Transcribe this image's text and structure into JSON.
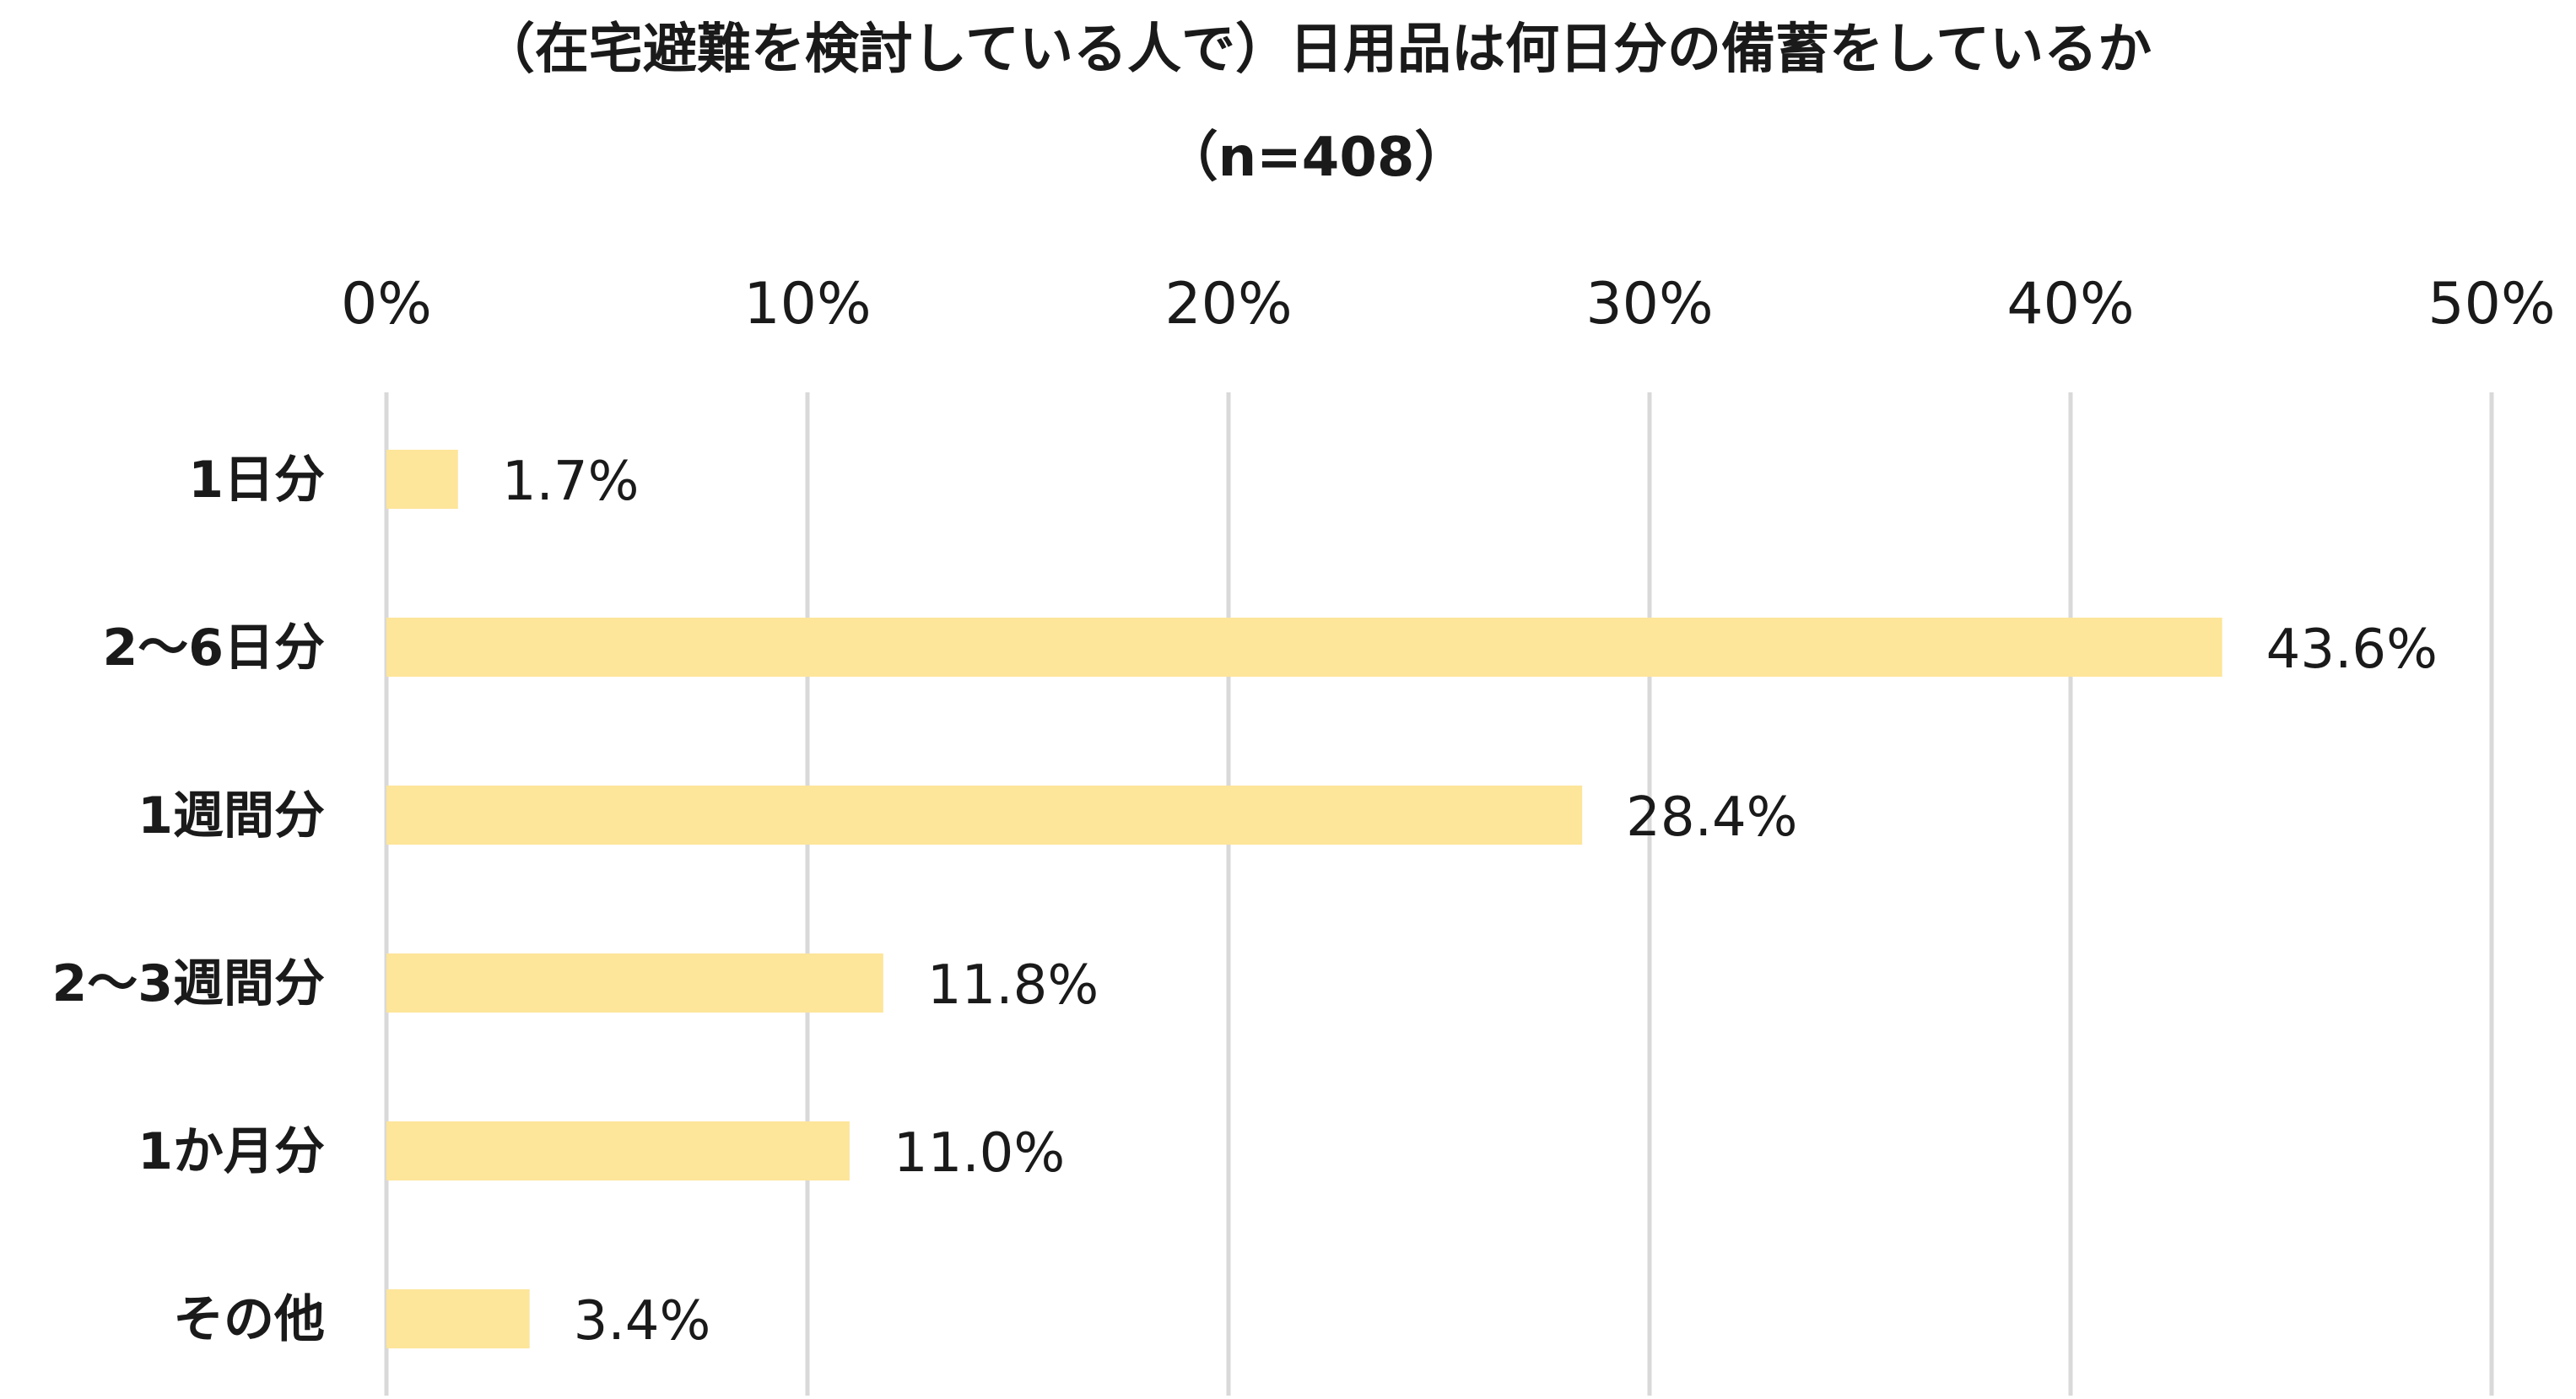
{
  "chart_data": {
    "type": "bar",
    "orientation": "horizontal",
    "title": "（在宅避難を検討している人で）日用品は何日分の備蓄をしているか",
    "subtitle": "（n=408）",
    "categories": [
      "1日分",
      "2～6日分",
      "1週間分",
      "2～3週間分",
      "1か月分",
      "その他"
    ],
    "values": [
      1.7,
      43.6,
      28.4,
      11.8,
      11.0,
      3.4
    ],
    "value_labels": [
      "1.7%",
      "43.6%",
      "28.4%",
      "11.8%",
      "11.0%",
      "3.4%"
    ],
    "xlim": [
      0,
      50
    ],
    "xticks": [
      0,
      10,
      20,
      30,
      40,
      50
    ],
    "xtick_labels": [
      "0%",
      "10%",
      "20%",
      "30%",
      "40%",
      "50%"
    ],
    "x_axis_position": "top",
    "grid": true,
    "bar_color": "#fde59a",
    "gridline_color": "#d9d9d9"
  }
}
